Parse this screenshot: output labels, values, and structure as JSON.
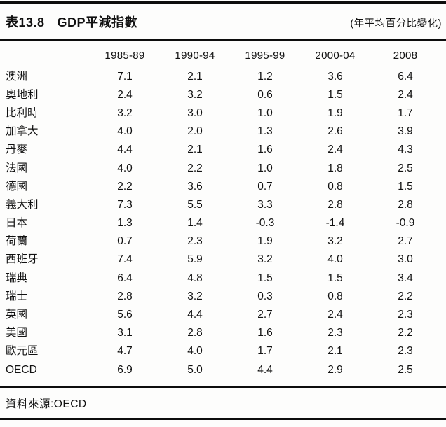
{
  "header": {
    "table_number": "表13.8",
    "title": "GDP平減指數",
    "unit_note": "(年平均百分比變化)"
  },
  "table": {
    "column_headers": [
      "1985-89",
      "1990-94",
      "1995-99",
      "2000-04",
      "2008"
    ],
    "rows": [
      {
        "label": "澳洲",
        "values": [
          "7.1",
          "2.1",
          "1.2",
          "3.6",
          "6.4"
        ]
      },
      {
        "label": "奧地利",
        "values": [
          "2.4",
          "3.2",
          "0.6",
          "1.5",
          "2.4"
        ]
      },
      {
        "label": "比利時",
        "values": [
          "3.2",
          "3.0",
          "1.0",
          "1.9",
          "1.7"
        ]
      },
      {
        "label": "加拿大",
        "values": [
          "4.0",
          "2.0",
          "1.3",
          "2.6",
          "3.9"
        ]
      },
      {
        "label": "丹麥",
        "values": [
          "4.4",
          "2.1",
          "1.6",
          "2.4",
          "4.3"
        ]
      },
      {
        "label": "法國",
        "values": [
          "4.0",
          "2.2",
          "1.0",
          "1.8",
          "2.5"
        ]
      },
      {
        "label": "德國",
        "values": [
          "2.2",
          "3.6",
          "0.7",
          "0.8",
          "1.5"
        ]
      },
      {
        "label": "義大利",
        "values": [
          "7.3",
          "5.5",
          "3.3",
          "2.8",
          "2.8"
        ]
      },
      {
        "label": "日本",
        "values": [
          "1.3",
          "1.4",
          "-0.3",
          "-1.4",
          "-0.9"
        ]
      },
      {
        "label": "荷蘭",
        "values": [
          "0.7",
          "2.3",
          "1.9",
          "3.2",
          "2.7"
        ]
      },
      {
        "label": "西班牙",
        "values": [
          "7.4",
          "5.9",
          "3.2",
          "4.0",
          "3.0"
        ]
      },
      {
        "label": "瑞典",
        "values": [
          "6.4",
          "4.8",
          "1.5",
          "1.5",
          "3.4"
        ]
      },
      {
        "label": "瑞士",
        "values": [
          "2.8",
          "3.2",
          "0.3",
          "0.8",
          "2.2"
        ]
      },
      {
        "label": "英國",
        "values": [
          "5.6",
          "4.4",
          "2.7",
          "2.4",
          "2.3"
        ]
      },
      {
        "label": "美國",
        "values": [
          "3.1",
          "2.8",
          "1.6",
          "2.3",
          "2.2"
        ]
      },
      {
        "label": "歐元區",
        "values": [
          "4.7",
          "4.0",
          "1.7",
          "2.1",
          "2.3"
        ]
      },
      {
        "label": "OECD",
        "values": [
          "6.9",
          "5.0",
          "4.4",
          "2.9",
          "2.5"
        ]
      }
    ]
  },
  "footer": {
    "source_label": "資料來源:OECD"
  }
}
